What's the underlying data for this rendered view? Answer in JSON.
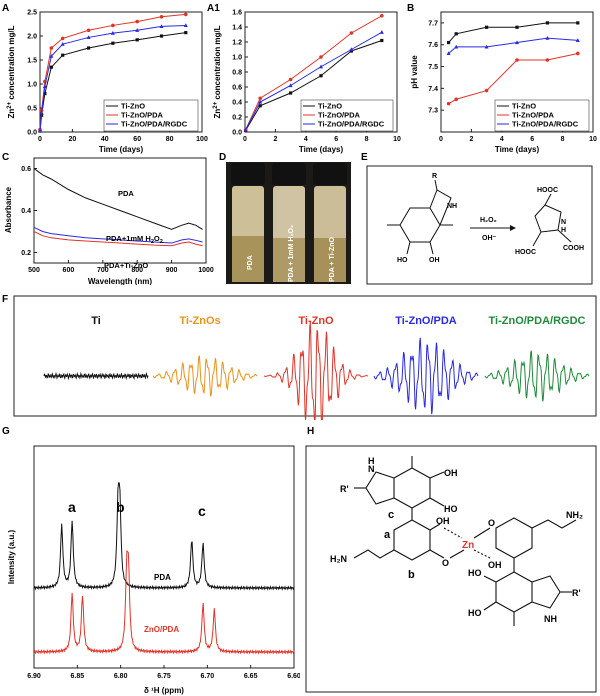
{
  "panels": {
    "A": "A",
    "A1": "A1",
    "B": "B",
    "C": "C",
    "D": "D",
    "E": "E",
    "F": "F",
    "G": "G",
    "H": "H"
  },
  "colors": {
    "black": "#111111",
    "red": "#e0342a",
    "blue": "#2a2ae0",
    "orange": "#e8931c",
    "green": "#1f8a3b"
  },
  "chart_data": [
    {
      "id": "A",
      "type": "line",
      "xlabel": "Time (days)",
      "ylabel": "Zn2+ concentration mg/L",
      "xlim": [
        0,
        100
      ],
      "ylim": [
        0,
        2.5
      ],
      "xticks": [
        "0",
        "20",
        "40",
        "60",
        "80",
        "100"
      ],
      "yticks": [
        "0.0",
        "0.5",
        "1.0",
        "1.5",
        "2.0",
        "2.5"
      ],
      "legend": "bottom-right",
      "x": [
        0,
        1,
        3,
        7,
        14,
        30,
        45,
        60,
        75,
        90
      ],
      "series": [
        {
          "name": "Ti-ZnO",
          "color": "#111111",
          "values": [
            0.02,
            0.35,
            0.8,
            1.35,
            1.6,
            1.75,
            1.85,
            1.92,
            2.0,
            2.07
          ]
        },
        {
          "name": "Ti-ZnO/PDA",
          "color": "#e0342a",
          "values": [
            0.05,
            0.45,
            1.05,
            1.75,
            1.95,
            2.12,
            2.22,
            2.3,
            2.4,
            2.45
          ]
        },
        {
          "name": "Ti-ZnO/PDA/RGDC",
          "color": "#2a2ae0",
          "values": [
            0.03,
            0.4,
            0.95,
            1.58,
            1.83,
            1.97,
            2.06,
            2.12,
            2.2,
            2.22
          ]
        }
      ]
    },
    {
      "id": "A1",
      "type": "line",
      "xlabel": "Time (days)",
      "ylabel": "Zn2+ concentration mg/L",
      "xlim": [
        0,
        10
      ],
      "ylim": [
        0,
        1.6
      ],
      "xticks": [
        "0",
        "2",
        "4",
        "6",
        "8",
        "10"
      ],
      "yticks": [
        "0.0",
        "0.2",
        "0.4",
        "0.6",
        "0.8",
        "1.0",
        "1.2",
        "1.4",
        "1.6"
      ],
      "legend": "bottom-right",
      "x": [
        0.04,
        1,
        3,
        5,
        7,
        9
      ],
      "series": [
        {
          "name": "Ti-ZnO",
          "color": "#111111",
          "values": [
            0.02,
            0.35,
            0.52,
            0.75,
            1.08,
            1.22
          ]
        },
        {
          "name": "Ti-ZnO/PDA",
          "color": "#e0342a",
          "values": [
            0.03,
            0.45,
            0.7,
            1.0,
            1.32,
            1.55
          ]
        },
        {
          "name": "Ti-ZnO/PDA/RGDC",
          "color": "#2a2ae0",
          "values": [
            0.03,
            0.4,
            0.62,
            0.87,
            1.1,
            1.33
          ]
        }
      ]
    },
    {
      "id": "B",
      "type": "line",
      "xlabel": "Time (days)",
      "ylabel": "pH value",
      "xlim": [
        0,
        10
      ],
      "ylim": [
        7.2,
        7.75
      ],
      "xticks": [
        "0",
        "2",
        "4",
        "6",
        "8",
        "10"
      ],
      "yticks": [
        "7.3",
        "7.4",
        "7.5",
        "7.6",
        "7.7"
      ],
      "legend": "bottom-right",
      "x": [
        0.5,
        1,
        3,
        5,
        7,
        9
      ],
      "series": [
        {
          "name": "Ti-ZnO",
          "color": "#111111",
          "values": [
            7.61,
            7.65,
            7.68,
            7.68,
            7.7,
            7.7
          ]
        },
        {
          "name": "Ti-ZnO/PDA",
          "color": "#e0342a",
          "values": [
            7.33,
            7.35,
            7.39,
            7.53,
            7.53,
            7.56
          ]
        },
        {
          "name": "Ti-ZnO/PDA/RGDC",
          "color": "#2a2ae0",
          "values": [
            7.56,
            7.59,
            7.59,
            7.61,
            7.63,
            7.62
          ]
        }
      ]
    },
    {
      "id": "C",
      "type": "line",
      "xlabel": "Wavelength (nm)",
      "ylabel": "Absorbance",
      "xlim": [
        500,
        1000
      ],
      "ylim": [
        0.15,
        0.65
      ],
      "xticks": [
        "500",
        "600",
        "700",
        "800",
        "900",
        "1000"
      ],
      "yticks": [
        "0.2",
        "0.4",
        "0.6"
      ],
      "x": [
        500,
        525,
        550,
        600,
        650,
        700,
        750,
        800,
        850,
        900,
        930,
        950,
        970,
        990
      ],
      "series": [
        {
          "label": "PDA",
          "color": "#111111",
          "values": [
            0.6,
            0.57,
            0.55,
            0.5,
            0.46,
            0.43,
            0.4,
            0.37,
            0.34,
            0.31,
            0.33,
            0.34,
            0.33,
            0.31
          ]
        },
        {
          "label": "PDA+1mM H2O2",
          "color": "#2a2ae0",
          "values": [
            0.32,
            0.3,
            0.29,
            0.28,
            0.27,
            0.265,
            0.26,
            0.255,
            0.25,
            0.245,
            0.26,
            0.265,
            0.258,
            0.25
          ]
        },
        {
          "label": "PDA+Ti-ZnO",
          "color": "#e0342a",
          "values": [
            0.3,
            0.28,
            0.27,
            0.26,
            0.255,
            0.25,
            0.245,
            0.24,
            0.235,
            0.232,
            0.245,
            0.25,
            0.24,
            0.232
          ]
        }
      ]
    },
    {
      "id": "G",
      "type": "line",
      "xlabel": "δ 1H (ppm)",
      "ylabel": "Intensity (a.u.)",
      "xlim": [
        6.9,
        6.6
      ],
      "xticks": [
        "6.90",
        "6.85",
        "6.80",
        "6.75",
        "6.70",
        "6.65",
        "6.60"
      ],
      "series": [
        {
          "label": "PDA",
          "color": "#111111"
        },
        {
          "label": "ZnO/PDA",
          "color": "#e0342a"
        }
      ],
      "peak_labels": [
        "a",
        "b",
        "c"
      ]
    }
  ],
  "panelA": {
    "ylabel_pre": "Zn",
    "ylabel_sup": "2+",
    "ylabel_post": " concentration mg/L",
    "xlabel": "Time (days)"
  },
  "panelA1": {
    "ylabel_pre": "Zn",
    "ylabel_sup": "2+",
    "ylabel_post": " concentration mg/L",
    "xlabel": "Time (days)"
  },
  "panelB": {
    "ylabel": "pH value",
    "xlabel": "Time (days)"
  },
  "panelC": {
    "ylabel": "Absorbance",
    "xlabel": "Wavelength (nm)",
    "lab1": "PDA",
    "lab2": "PDA+1mM H",
    "lab2sub": "2",
    "lab2b": "O",
    "lab2sub2": "2",
    "lab3": "PDA+Ti-ZnO"
  },
  "panelD": {
    "vials": [
      "PDA",
      "PDA + 1mM H₂O₂",
      "PDA + Ti-ZnO"
    ]
  },
  "panelE": {
    "r": "R",
    "nh": "NH",
    "oh1": "HO",
    "oh2": "OH",
    "h2o2": "H₂O₂",
    "ohm": "OH⁻",
    "hooc1": "HOOC",
    "hooc2": "HOOC",
    "cooh": "COOH",
    "nh2": "N",
    "h": "H"
  },
  "panelF": {
    "labels": [
      "Ti",
      "Ti-ZnOs",
      "Ti-ZnO",
      "Ti-ZnO/PDA",
      "Ti-ZnO/PDA/RGDC"
    ]
  },
  "panelG": {
    "ylabel": "Intensity (a.u.)",
    "xlabel": "δ ¹H (ppm)",
    "pda": "PDA",
    "znopda": "ZnO/PDA",
    "a": "a",
    "b": "b",
    "c": "c"
  },
  "panelH": {
    "r1": "R'",
    "n1": "N",
    "h1": "H",
    "oh": "OH",
    "ho": "HO",
    "c": "c",
    "a": "a",
    "b": "b",
    "oh2": "OH",
    "o": "O",
    "zn": "Zn",
    "nh2a": "NH₂",
    "h2n": "H₂N",
    "r2": "R'",
    "nh": "NH"
  }
}
